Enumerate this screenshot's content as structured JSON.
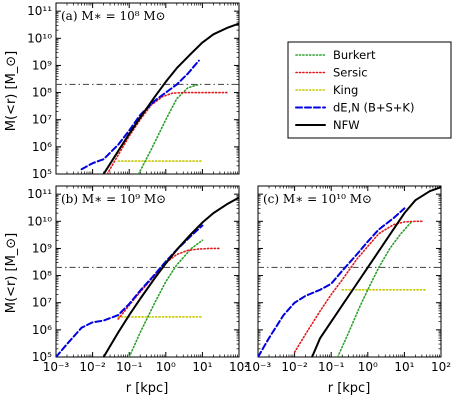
{
  "chart_data": {
    "type": "line",
    "xscale": "log",
    "yscale": "log",
    "xlim": [
      0.001,
      100
    ],
    "ylim": [
      100000,
      200000000000
    ],
    "xlabel": "r [kpc]",
    "ylabel": "M(<r) [M_⊙]",
    "x_tick_labels": [
      "10⁻³",
      "10⁻²",
      "10⁻¹",
      "10⁰",
      "10¹",
      "10²"
    ],
    "y_tick_labels": [
      "10⁵",
      "10⁶",
      "10⁷",
      "10⁸",
      "10⁹",
      "10¹⁰",
      "10¹¹"
    ],
    "legend": {
      "placement": "right",
      "entries": [
        {
          "label": "Burkert",
          "color": "#2ca02c",
          "style": "dotted"
        },
        {
          "label": "Sersic",
          "color": "#e31a1c",
          "style": "dotted"
        },
        {
          "label": "King",
          "color": "#c8c800",
          "style": "dotted"
        },
        {
          "label": "dE,N (B+S+K)",
          "color": "#0000e0",
          "style": "dashed"
        },
        {
          "label": "NFW",
          "color": "#000000",
          "style": "solid"
        }
      ]
    },
    "reference_line": {
      "y": 200000000,
      "color": "#555555",
      "style": "dashdot"
    },
    "panels": [
      {
        "label": "(a) M∗ = 10⁸ M⊙",
        "series": [
          {
            "name": "Burkert",
            "x": [
              0.18,
              0.4,
              1,
              2,
              4,
              8
            ],
            "y": [
              100000,
              800000,
              10000000,
              60000000,
              150000000,
              200000000
            ]
          },
          {
            "name": "Sersic",
            "x": [
              0.025,
              0.05,
              0.1,
              0.2,
              0.4,
              0.8,
              1.5,
              3,
              6,
              10,
              20,
              50
            ],
            "y": [
              100000,
              500000,
              2500000,
              10000000,
              35000000,
              70000000,
              95000000,
              100000000,
              100000000,
              100000000,
              100000000,
              100000000
            ]
          },
          {
            "name": "King",
            "x": [
              0.05,
              0.1,
              0.2,
              0.5,
              1,
              2,
              5,
              10
            ],
            "y": [
              300000,
              300000,
              300000,
              300000,
              300000,
              300000,
              300000,
              300000
            ]
          },
          {
            "name": "dE,N (B+S+K)",
            "x": [
              0.005,
              0.01,
              0.02,
              0.05,
              0.1,
              0.2,
              0.5,
              1,
              2,
              4,
              8
            ],
            "y": [
              150000,
              250000,
              350000,
              1200000,
              4000000,
              15000000,
              50000000,
              100000000,
              200000000,
              500000000,
              1500000000
            ]
          },
          {
            "name": "NFW",
            "x": [
              0.02,
              0.05,
              0.1,
              0.2,
              0.5,
              1,
              2,
              5,
              10,
              20,
              50,
              100
            ],
            "y": [
              100000,
              700000,
              3000000,
              12000000,
              70000000,
              250000000,
              800000000,
              2800000000,
              7000000000,
              14000000000,
              25000000000,
              35000000000
            ]
          }
        ]
      },
      {
        "label": "(b) M∗ = 10⁹ M⊙",
        "series": [
          {
            "name": "Burkert",
            "x": [
              0.1,
              0.2,
              0.5,
              1,
              2,
              5,
              10
            ],
            "y": [
              100000,
              800000,
              10000000,
              60000000,
              250000000,
              1000000000,
              2000000000
            ]
          },
          {
            "name": "Sersic",
            "x": [
              0.05,
              0.1,
              0.2,
              0.5,
              1,
              2,
              4,
              8,
              15,
              30
            ],
            "y": [
              2500000,
              8000000,
              25000000,
              100000000,
              300000000,
              600000000,
              850000000,
              950000000,
              1000000000,
              1000000000
            ]
          },
          {
            "name": "King",
            "x": [
              0.05,
              0.1,
              0.2,
              0.5,
              1,
              2,
              5,
              10
            ],
            "y": [
              3000000,
              3000000,
              3000000,
              3000000,
              3000000,
              3000000,
              3000000,
              3000000
            ]
          },
          {
            "name": "dE,N (B+S+K)",
            "x": [
              0.001,
              0.002,
              0.005,
              0.01,
              0.02,
              0.05,
              0.1,
              0.2,
              0.5,
              1,
              2,
              5,
              10
            ],
            "y": [
              100000,
              300000,
              1200000,
              1900000,
              2200000,
              3500000,
              9000000,
              28000000,
              110000000,
              330000000,
              900000000,
              3000000000,
              7000000000
            ]
          },
          {
            "name": "NFW",
            "x": [
              0.02,
              0.05,
              0.1,
              0.2,
              0.5,
              1,
              2,
              5,
              10,
              20,
              50,
              100
            ],
            "y": [
              100000,
              800000,
              3500000,
              14000000,
              80000000,
              280000000,
              900000000,
              3500000000,
              9000000000,
              20000000000,
              45000000000,
              75000000000
            ]
          }
        ]
      },
      {
        "label": "(c) M∗ = 10¹⁰ M⊙",
        "series": [
          {
            "name": "Burkert",
            "x": [
              0.15,
              0.3,
              0.6,
              1,
              2,
              4,
              8,
              15
            ],
            "y": [
              100000,
              800000,
              7000000,
              30000000,
              200000000,
              1000000000,
              3500000000,
              9000000000
            ]
          },
          {
            "name": "Sersic",
            "x": [
              0.01,
              0.02,
              0.05,
              0.1,
              0.2,
              0.5,
              1,
              2,
              5,
              10,
              20,
              30
            ],
            "y": [
              150000,
              700000,
              5000000,
              20000000,
              70000000,
              400000000,
              1200000000,
              3500000000,
              7500000000,
              9500000000,
              10000000000,
              10000000000
            ]
          },
          {
            "name": "King",
            "x": [
              0.2,
              0.5,
              1,
              2,
              5,
              10,
              20,
              40
            ],
            "y": [
              30000000,
              30000000,
              30000000,
              30000000,
              30000000,
              30000000,
              30000000,
              30000000
            ]
          },
          {
            "name": "dE,N (B+S+K)",
            "x": [
              0.001,
              0.002,
              0.005,
              0.01,
              0.02,
              0.05,
              0.1,
              0.2,
              0.5,
              1,
              2,
              5,
              10
            ],
            "y": [
              100000,
              500000,
              3500000,
              10000000,
              18000000,
              30000000,
              50000000,
              150000000,
              600000000,
              1800000000,
              5000000000,
              13000000000,
              30000000000
            ]
          },
          {
            "name": "NFW",
            "x": [
              0.03,
              0.05,
              0.1,
              0.2,
              0.5,
              1,
              2,
              5,
              10,
              20,
              50,
              100
            ],
            "y": [
              100000,
              500000,
              2000000,
              8000000,
              50000000,
              200000000,
              800000000,
              5000000000,
              20000000000,
              60000000000,
              130000000000,
              180000000000
            ]
          }
        ]
      }
    ]
  }
}
